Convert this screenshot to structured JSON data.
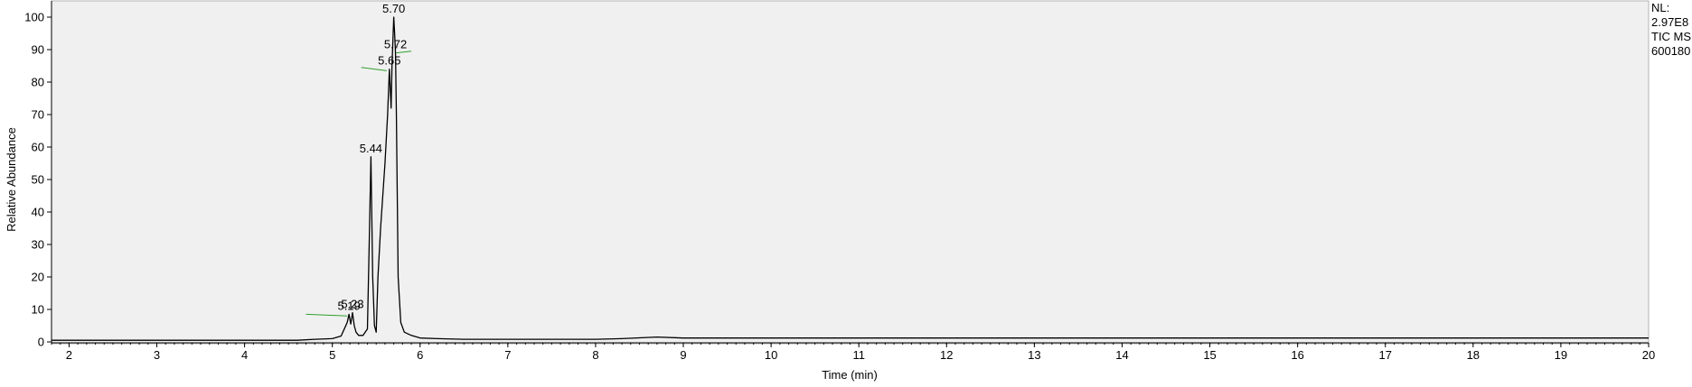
{
  "info_panel": {
    "nl_label": "NL:",
    "nl_value": "2.97E8",
    "trace": "TIC  MS",
    "sample": "600180"
  },
  "chart_data": {
    "type": "line",
    "xlabel": "Time (min)",
    "ylabel": "Relative Abundance",
    "xlim": [
      1.8,
      20
    ],
    "ylim": [
      0,
      100
    ],
    "x_ticks": [
      2,
      3,
      4,
      5,
      6,
      7,
      8,
      9,
      10,
      11,
      12,
      13,
      14,
      15,
      16,
      17,
      18,
      19,
      20
    ],
    "y_ticks": [
      0,
      10,
      20,
      30,
      40,
      50,
      60,
      70,
      80,
      90,
      100
    ],
    "grid": false,
    "colors": {
      "trace": "#000000",
      "baseline_marker": "#2ca02c",
      "plot_background": "#f0f0f0",
      "axis": "#000000"
    },
    "series": [
      {
        "x": [
          1.8,
          4.6,
          4.8,
          5.0,
          5.1,
          5.17,
          5.19,
          5.21,
          5.23,
          5.25,
          5.27,
          5.3,
          5.35,
          5.4,
          5.42,
          5.44,
          5.46,
          5.48,
          5.5,
          5.52,
          5.55,
          5.6,
          5.63,
          5.65,
          5.67,
          5.68,
          5.7,
          5.71,
          5.72,
          5.73,
          5.75,
          5.78,
          5.82,
          5.9,
          6.0,
          6.2,
          6.5,
          7.0,
          8.0,
          8.3,
          8.7,
          9.0,
          10.0,
          12.0,
          15.0,
          18.0,
          20.0
        ],
        "y": [
          0.5,
          0.5,
          0.8,
          1.0,
          1.8,
          6.0,
          8.5,
          5.5,
          9.0,
          5.0,
          3.0,
          2.0,
          2.0,
          4.0,
          30.0,
          57.0,
          20.0,
          5.0,
          3.0,
          20.0,
          35.0,
          55.0,
          70.0,
          84.0,
          72.0,
          85.0,
          100.0,
          95.0,
          89.0,
          70.0,
          20.0,
          6.0,
          3.0,
          2.0,
          1.2,
          1.0,
          0.8,
          0.8,
          0.8,
          1.0,
          1.5,
          1.2,
          1.2,
          1.2,
          1.2,
          1.2,
          1.2
        ]
      }
    ],
    "peak_labels": [
      {
        "x": 5.19,
        "y": 8.5,
        "label": "5.19"
      },
      {
        "x": 5.23,
        "y": 9.0,
        "label": "5.23"
      },
      {
        "x": 5.44,
        "y": 57.0,
        "label": "5.44"
      },
      {
        "x": 5.65,
        "y": 84.0,
        "label": "5.65"
      },
      {
        "x": 5.7,
        "y": 100.0,
        "label": "5.70"
      },
      {
        "x": 5.72,
        "y": 89.0,
        "label": "5.72"
      }
    ],
    "integration_marks": [
      {
        "x1": 4.7,
        "y1": 8.5,
        "x2": 5.17,
        "y2": 8.0
      },
      {
        "x1": 5.33,
        "y1": 84.5,
        "x2": 5.62,
        "y2": 83.5
      },
      {
        "x1": 5.73,
        "y1": 89.0,
        "x2": 5.9,
        "y2": 89.5
      }
    ]
  }
}
